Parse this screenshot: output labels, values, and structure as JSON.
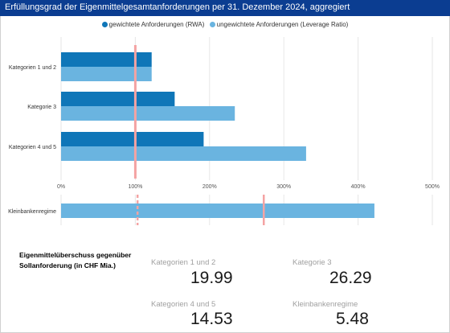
{
  "title": "Erfüllungsgrad der Eigenmittelgesamtanforderungen per 31. Dezember 2024, aggregiert",
  "legend": {
    "items": [
      {
        "label": "gewichtete Anforderungen (RWA)",
        "color": "#0f76b8"
      },
      {
        "label": "ungewichtete Anforderungen (Leverage Ratio)",
        "color": "#6ab4e0"
      }
    ]
  },
  "chart_data": [
    {
      "type": "bar",
      "orientation": "horizontal",
      "title": "Erfüllungsgrad der Eigenmittelgesamtanforderungen per 31. Dezember 2024, aggregiert",
      "categories": [
        "Kategorien 1 und 2",
        "Kategorie 3",
        "Kategorien 4 und 5"
      ],
      "series": [
        {
          "name": "gewichtete Anforderungen (RWA)",
          "values": [
            122,
            153,
            192
          ],
          "color": "#0f76b8"
        },
        {
          "name": "ungewichtete Anforderungen (Leverage Ratio)",
          "values": [
            122,
            234,
            330
          ],
          "color": "#6ab4e0"
        }
      ],
      "xlim": [
        0,
        500
      ],
      "xticks": [
        0,
        100,
        200,
        300,
        400,
        500
      ],
      "xtick_labels": [
        "0%",
        "100%",
        "200%",
        "300%",
        "400%",
        "500%"
      ],
      "reference_line": 100,
      "grid": true,
      "legend_position": "top-center"
    },
    {
      "type": "bar",
      "orientation": "horizontal",
      "categories": [
        "Kleinbankenregime"
      ],
      "series": [
        {
          "values": [
            422
          ],
          "color": "#6ab4e0"
        }
      ],
      "xlim": [
        0,
        500
      ],
      "reference_lines": [
        {
          "value": 103,
          "style": "dashed"
        },
        {
          "value": 273,
          "style": "solid"
        }
      ],
      "grid": true
    }
  ],
  "kpi": {
    "heading": "Eigenmittelüberschuss gegenüber Sollanforderung (in CHF Mia.)",
    "cards": [
      {
        "label": "Kategorien 1 und 2",
        "value": "19.99"
      },
      {
        "label": "Kategorie 3",
        "value": "26.29"
      },
      {
        "label": "Kategorien 4 und 5",
        "value": "14.53"
      },
      {
        "label": "Kleinbankenregime",
        "value": "5.48"
      }
    ]
  },
  "colors": {
    "title_bar": "#0b3d91",
    "reference_line": "#f4a3a3",
    "gridline": "#e6e6e6"
  }
}
